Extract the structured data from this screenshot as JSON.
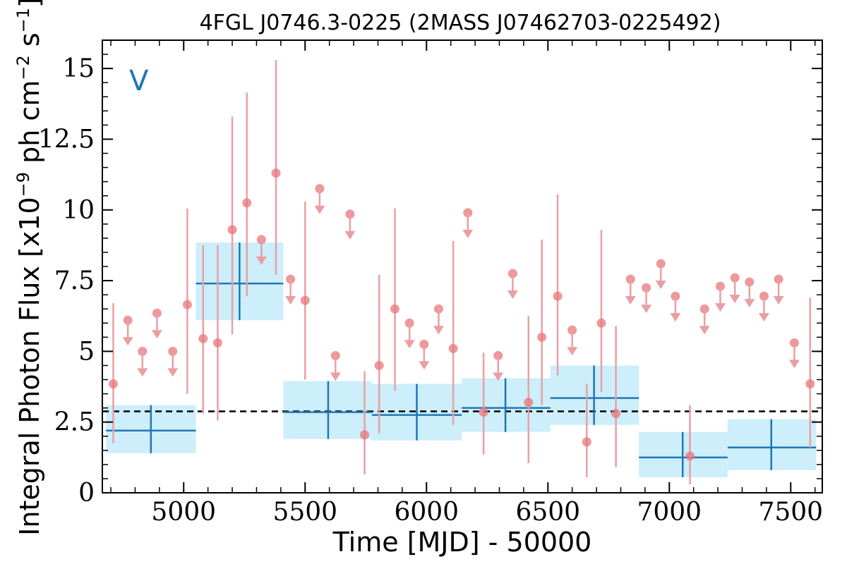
{
  "chart_data": {
    "type": "scatter",
    "title": "4FGL J0746.3-0225 (2MASS J07462703-0225492)",
    "xlabel": "Time [MJD] - 50000",
    "ylabel": "Integral Photon Flux [x10^{-9} ph cm^{-2} s^{-1}]",
    "ylabel_parts": {
      "prefix": "Integral Photon Flux [x10",
      "exp1": "−9",
      "mid1": " ph cm",
      "exp2": "−2",
      "mid2": " s",
      "exp3": "−1",
      "suffix": "]"
    },
    "annotation": "V",
    "xlim": [
      4665,
      7630
    ],
    "ylim": [
      0,
      16
    ],
    "xticks": [
      {
        "value": 5000,
        "label": "5000"
      },
      {
        "value": 5500,
        "label": "5500"
      },
      {
        "value": 6000,
        "label": "6000"
      },
      {
        "value": 6500,
        "label": "6500"
      },
      {
        "value": 7000,
        "label": "7000"
      },
      {
        "value": 7500,
        "label": "7500"
      }
    ],
    "yticks": [
      {
        "value": 0,
        "label": "0"
      },
      {
        "value": 2.5,
        "label": "2.5"
      },
      {
        "value": 5,
        "label": "5"
      },
      {
        "value": 7.5,
        "label": "7.5"
      },
      {
        "value": 10,
        "label": "10"
      },
      {
        "value": 12.5,
        "label": "12.5"
      },
      {
        "value": 15,
        "label": "15"
      }
    ],
    "mean_flux": 2.88,
    "colors": {
      "points": "#e8767a",
      "points_err": "#e8a0a3",
      "bins": "#1f77b4",
      "bin_fill": "#cdeefb",
      "mean_line": "#000000"
    },
    "detections": [
      {
        "x": 4710,
        "y": 3.85,
        "ylo": 1.75,
        "yhi": 6.7
      },
      {
        "x": 5015,
        "y": 6.65,
        "ylo": 3.5,
        "yhi": 10.05
      },
      {
        "x": 5080,
        "y": 5.45,
        "ylo": 2.8,
        "yhi": 8.75
      },
      {
        "x": 5140,
        "y": 5.3,
        "ylo": 2.55,
        "yhi": 8.75
      },
      {
        "x": 5200,
        "y": 9.3,
        "ylo": 5.6,
        "yhi": 13.3
      },
      {
        "x": 5260,
        "y": 10.25,
        "ylo": 6.95,
        "yhi": 14.15
      },
      {
        "x": 5380,
        "y": 11.3,
        "ylo": 7.7,
        "yhi": 15.3
      },
      {
        "x": 5500,
        "y": 6.8,
        "ylo": 4.0,
        "yhi": 10.3
      },
      {
        "x": 5745,
        "y": 2.05,
        "ylo": 0.65,
        "yhi": 4.3
      },
      {
        "x": 5805,
        "y": 4.5,
        "ylo": 2.1,
        "yhi": 7.7
      },
      {
        "x": 5870,
        "y": 6.5,
        "ylo": 3.6,
        "yhi": 10.05
      },
      {
        "x": 6110,
        "y": 5.1,
        "ylo": 2.4,
        "yhi": 8.9
      },
      {
        "x": 6235,
        "y": 2.85,
        "ylo": 1.35,
        "yhi": 4.95
      },
      {
        "x": 6420,
        "y": 3.2,
        "ylo": 1.05,
        "yhi": 6.25
      },
      {
        "x": 6475,
        "y": 5.5,
        "ylo": 3.1,
        "yhi": 8.95
      },
      {
        "x": 6540,
        "y": 6.95,
        "ylo": 4.15,
        "yhi": 10.55
      },
      {
        "x": 6660,
        "y": 1.8,
        "ylo": 0.55,
        "yhi": 3.85
      },
      {
        "x": 6720,
        "y": 6.0,
        "ylo": 3.55,
        "yhi": 9.3
      },
      {
        "x": 6780,
        "y": 2.8,
        "ylo": 0.9,
        "yhi": 5.9
      },
      {
        "x": 7085,
        "y": 1.3,
        "ylo": 0.3,
        "yhi": 3.1
      },
      {
        "x": 7580,
        "y": 3.85,
        "ylo": 1.6,
        "yhi": 6.9
      }
    ],
    "upper_limits": [
      {
        "x": 4770,
        "y": 6.1
      },
      {
        "x": 4830,
        "y": 5.0
      },
      {
        "x": 4890,
        "y": 6.35
      },
      {
        "x": 4955,
        "y": 5.0
      },
      {
        "x": 5320,
        "y": 8.95
      },
      {
        "x": 5440,
        "y": 7.55
      },
      {
        "x": 5560,
        "y": 10.75
      },
      {
        "x": 5625,
        "y": 4.85
      },
      {
        "x": 5685,
        "y": 9.85
      },
      {
        "x": 5930,
        "y": 6.0
      },
      {
        "x": 5990,
        "y": 5.25
      },
      {
        "x": 6050,
        "y": 6.5
      },
      {
        "x": 6170,
        "y": 9.9
      },
      {
        "x": 6295,
        "y": 4.85
      },
      {
        "x": 6355,
        "y": 7.75
      },
      {
        "x": 6600,
        "y": 5.75
      },
      {
        "x": 6840,
        "y": 7.55
      },
      {
        "x": 6905,
        "y": 7.25
      },
      {
        "x": 6965,
        "y": 8.1
      },
      {
        "x": 7025,
        "y": 6.95
      },
      {
        "x": 7145,
        "y": 6.5
      },
      {
        "x": 7210,
        "y": 7.3
      },
      {
        "x": 7270,
        "y": 7.6
      },
      {
        "x": 7330,
        "y": 7.45
      },
      {
        "x": 7390,
        "y": 6.95
      },
      {
        "x": 7450,
        "y": 7.55
      },
      {
        "x": 7515,
        "y": 5.3
      }
    ],
    "bins": [
      {
        "x": 4865,
        "xlo": 4680,
        "xhi": 5050,
        "y": 2.2,
        "ylo": 1.4,
        "yhi": 3.1
      },
      {
        "x": 5230,
        "xlo": 5050,
        "xhi": 5410,
        "y": 7.4,
        "ylo": 6.1,
        "yhi": 8.85
      },
      {
        "x": 5595,
        "xlo": 5410,
        "xhi": 5775,
        "y": 2.85,
        "ylo": 1.9,
        "yhi": 3.95
      },
      {
        "x": 5960,
        "xlo": 5775,
        "xhi": 6145,
        "y": 2.75,
        "ylo": 1.85,
        "yhi": 3.85
      },
      {
        "x": 6325,
        "xlo": 6145,
        "xhi": 6510,
        "y": 3.0,
        "ylo": 2.15,
        "yhi": 4.05
      },
      {
        "x": 6690,
        "xlo": 6510,
        "xhi": 6875,
        "y": 3.35,
        "ylo": 2.4,
        "yhi": 4.5
      },
      {
        "x": 7055,
        "xlo": 6875,
        "xhi": 7240,
        "y": 1.25,
        "ylo": 0.55,
        "yhi": 2.15
      },
      {
        "x": 7420,
        "xlo": 7240,
        "xhi": 7605,
        "y": 1.6,
        "ylo": 0.8,
        "yhi": 2.6
      }
    ]
  }
}
